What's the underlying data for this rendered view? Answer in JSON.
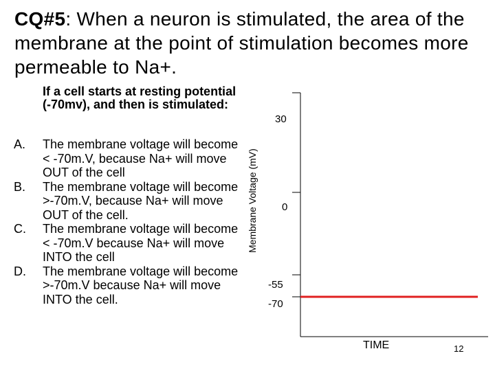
{
  "title": {
    "prefix": "CQ#5",
    "text": ": When a neuron is stimulated, the area of the membrane at the point of stimulation becomes more permeable to Na+."
  },
  "intro": "If a cell starts at resting potential (-70mv), and then is stimulated:",
  "choices": [
    {
      "letter": "A.",
      "text": "The membrane voltage will become < -70m.V, because Na+ will move OUT of the cell"
    },
    {
      "letter": "B.",
      "text": "The membrane voltage will become >-70m.V, because Na+ will move OUT of the cell."
    },
    {
      "letter": "C.",
      "text": "The membrane voltage will become < -70m.V because Na+ will move INTO the cell"
    },
    {
      "letter": "D.",
      "text": "The membrane voltage will become >-70m.V because Na+ will move INTO the cell."
    }
  ],
  "chart_data": {
    "type": "line",
    "ylabel": "Membrane Voltage (mV)",
    "xlabel": "TIME",
    "yticks": [
      "30",
      "0",
      "-55",
      "-70"
    ],
    "series": [
      {
        "color": "#e02020",
        "values": [
          -70,
          -70
        ]
      }
    ]
  },
  "slide_number": "12"
}
